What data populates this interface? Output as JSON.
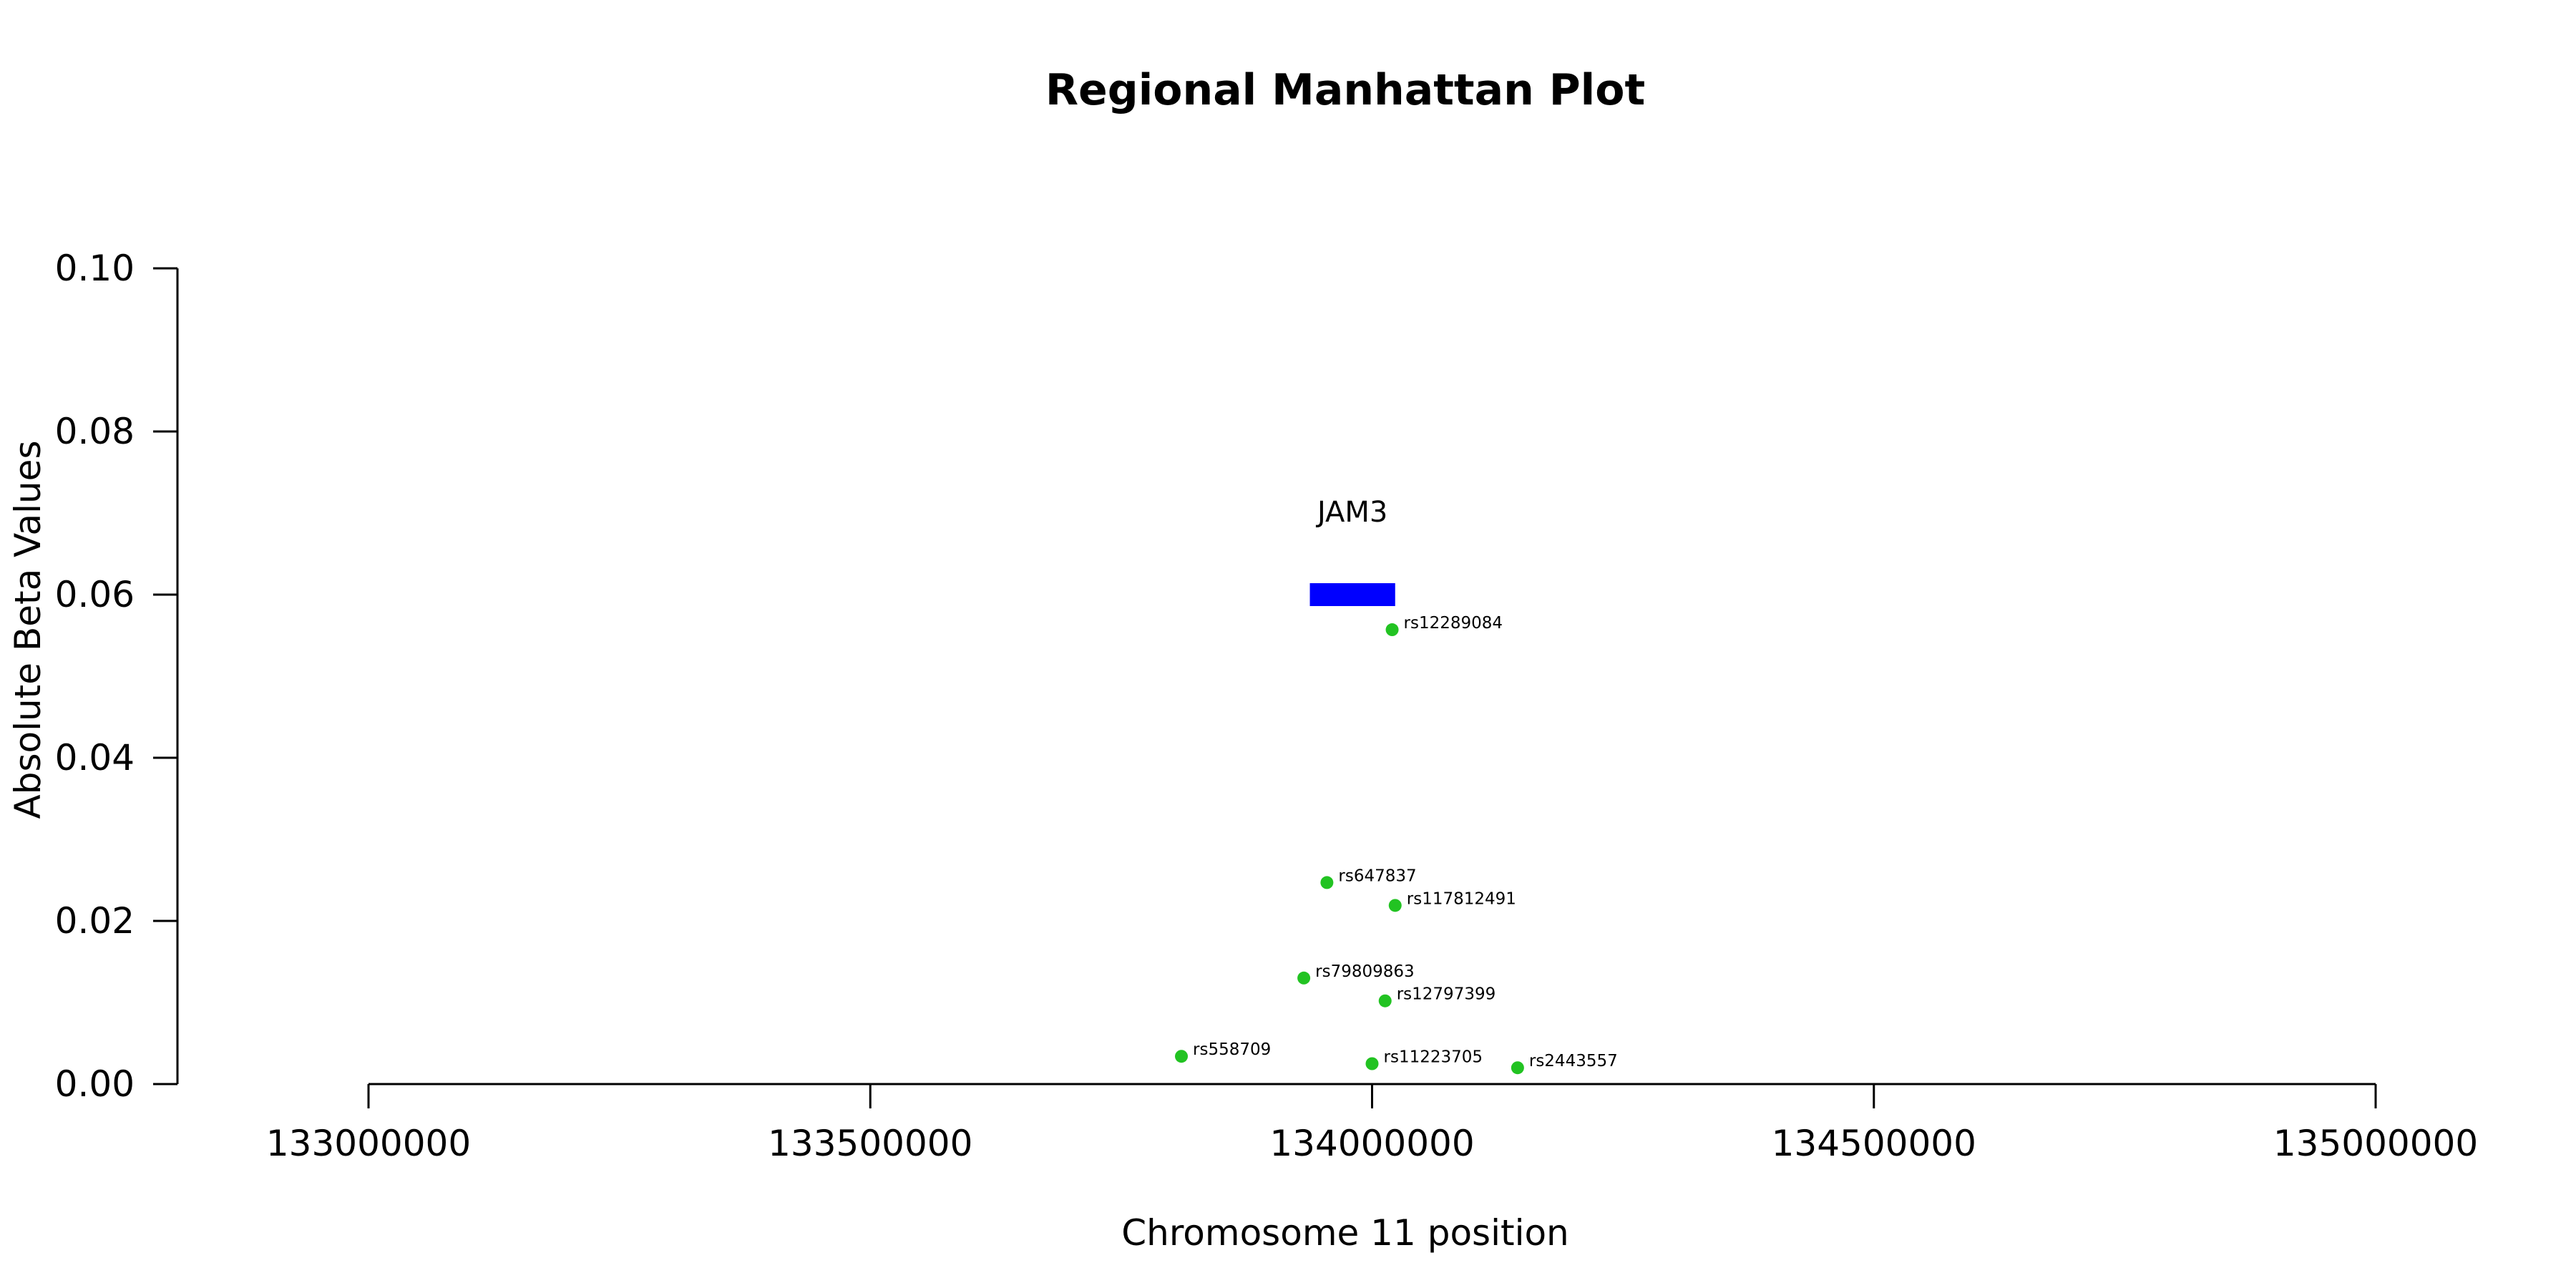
{
  "chart_data": {
    "type": "scatter",
    "title": "Regional Manhattan Plot",
    "xlabel": "Chromosome 11 position",
    "ylabel": "Absolute Beta Values",
    "xlim": [
      133000000,
      135000000
    ],
    "ylim": [
      0,
      0.1
    ],
    "x_ticks": [
      "133000000",
      "133500000",
      "134000000",
      "134500000",
      "135000000"
    ],
    "y_ticks": [
      "0.00",
      "0.02",
      "0.04",
      "0.06",
      "0.08",
      "0.10"
    ],
    "grid": false,
    "point_color": "#22c322",
    "points": [
      {
        "label": "rs12289084",
        "x": 134020000,
        "y": 0.0557
      },
      {
        "label": "rs647837",
        "x": 133955000,
        "y": 0.0247
      },
      {
        "label": "rs117812491",
        "x": 134023000,
        "y": 0.0219
      },
      {
        "label": "rs79809863",
        "x": 133932000,
        "y": 0.013
      },
      {
        "label": "rs12797399",
        "x": 134013000,
        "y": 0.0102
      },
      {
        "label": "rs558709",
        "x": 133810000,
        "y": 0.0034
      },
      {
        "label": "rs11223705",
        "x": 134000000,
        "y": 0.0025
      },
      {
        "label": "rs2443557",
        "x": 134145000,
        "y": 0.002
      }
    ],
    "genes": [
      {
        "name": "JAM3",
        "start": 133938000,
        "end": 134023000,
        "y": 0.06,
        "color": "#0000ff"
      }
    ]
  }
}
